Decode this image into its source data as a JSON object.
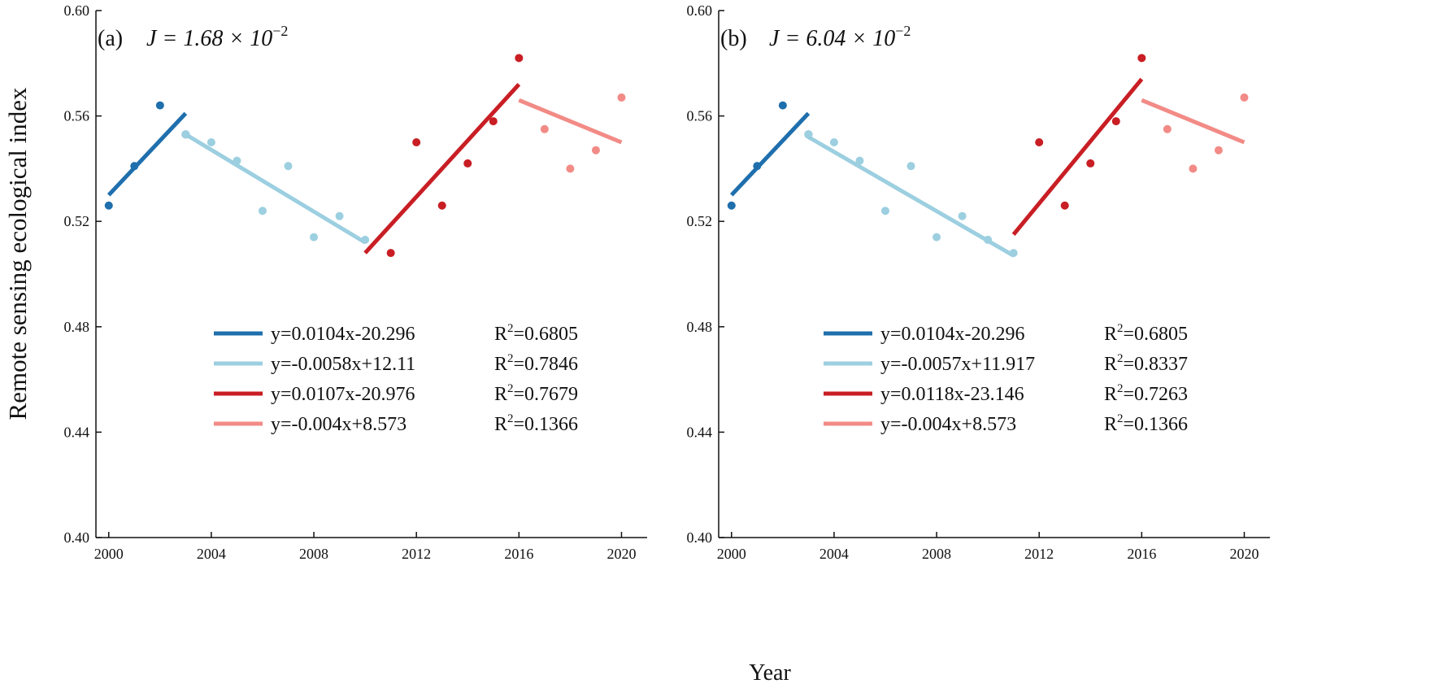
{
  "figure": {
    "ylabel": "Remote sensing ecological index",
    "xlabel": "Year"
  },
  "chart_data": [
    {
      "type": "scatter",
      "panel_label": "(a)",
      "j_value": "J = 1.68 × 10",
      "j_exponent": "−2",
      "xlim": [
        1999.5,
        2021
      ],
      "ylim": [
        0.4,
        0.6
      ],
      "xticks": [
        "2000",
        "2004",
        "2008",
        "2012",
        "2016",
        "2020"
      ],
      "yticks": [
        "0.40",
        "0.44",
        "0.48",
        "0.52",
        "0.56",
        "0.60"
      ],
      "series": [
        {
          "name": "segment-1",
          "color": "#1f6fad",
          "x": [
            2000,
            2001,
            2002,
            2003
          ],
          "y": [
            0.526,
            0.541,
            0.564,
            0.553
          ],
          "fit": {
            "x": [
              2000,
              2003
            ],
            "y": [
              0.53,
              0.561
            ]
          },
          "equation": "y=0.0104x-20.296",
          "r2_label": "R",
          "r2_sup": "2",
          "r2_value": "=0.6805"
        },
        {
          "name": "segment-2",
          "color": "#9ccfe0",
          "x": [
            2003,
            2004,
            2005,
            2006,
            2007,
            2008,
            2009,
            2010
          ],
          "y": [
            0.553,
            0.55,
            0.543,
            0.524,
            0.541,
            0.514,
            0.522,
            0.513
          ],
          "fit": {
            "x": [
              2003,
              2010
            ],
            "y": [
              0.553,
              0.512
            ]
          },
          "equation": "y=-0.0058x+12.11",
          "r2_label": "R",
          "r2_sup": "2",
          "r2_value": "=0.7846"
        },
        {
          "name": "segment-3",
          "color": "#c81e24",
          "x": [
            2011,
            2012,
            2013,
            2014,
            2015,
            2016
          ],
          "y": [
            0.508,
            0.55,
            0.526,
            0.542,
            0.558,
            0.582
          ],
          "fit": {
            "x": [
              2010,
              2016
            ],
            "y": [
              0.508,
              0.572
            ]
          },
          "equation": "y=0.0107x-20.976",
          "r2_label": "R",
          "r2_sup": "2",
          "r2_value": "=0.7679"
        },
        {
          "name": "segment-4",
          "color": "#f28b86",
          "x": [
            2017,
            2018,
            2019,
            2020
          ],
          "y": [
            0.555,
            0.54,
            0.547,
            0.567
          ],
          "fit": {
            "x": [
              2016,
              2020
            ],
            "y": [
              0.566,
              0.55
            ]
          },
          "equation": "y=-0.004x+8.573",
          "r2_label": "R",
          "r2_sup": "2",
          "r2_value": "=0.1366"
        }
      ]
    },
    {
      "type": "scatter",
      "panel_label": "(b)",
      "j_value": "J = 6.04 × 10",
      "j_exponent": "−2",
      "xlim": [
        1999.5,
        2021
      ],
      "ylim": [
        0.4,
        0.6
      ],
      "xticks": [
        "2000",
        "2004",
        "2008",
        "2012",
        "2016",
        "2020"
      ],
      "yticks": [
        "0.40",
        "0.44",
        "0.48",
        "0.52",
        "0.56",
        "0.60"
      ],
      "series": [
        {
          "name": "segment-1",
          "color": "#1f6fad",
          "x": [
            2000,
            2001,
            2002,
            2003
          ],
          "y": [
            0.526,
            0.541,
            0.564,
            0.553
          ],
          "fit": {
            "x": [
              2000,
              2003
            ],
            "y": [
              0.53,
              0.561
            ]
          },
          "equation": "y=0.0104x-20.296",
          "r2_label": "R",
          "r2_sup": "2",
          "r2_value": "=0.6805"
        },
        {
          "name": "segment-2",
          "color": "#9ccfe0",
          "x": [
            2003,
            2004,
            2005,
            2006,
            2007,
            2008,
            2009,
            2010,
            2011
          ],
          "y": [
            0.553,
            0.55,
            0.543,
            0.524,
            0.541,
            0.514,
            0.522,
            0.513,
            0.508
          ],
          "fit": {
            "x": [
              2003,
              2011
            ],
            "y": [
              0.552,
              0.507
            ]
          },
          "equation": "y=-0.0057x+11.917",
          "r2_label": "R",
          "r2_sup": "2",
          "r2_value": "=0.8337"
        },
        {
          "name": "segment-3",
          "color": "#c81e24",
          "x": [
            2012,
            2013,
            2014,
            2015,
            2016
          ],
          "y": [
            0.55,
            0.526,
            0.542,
            0.558,
            0.582
          ],
          "fit": {
            "x": [
              2011,
              2016
            ],
            "y": [
              0.515,
              0.574
            ]
          },
          "equation": "y=0.0118x-23.146",
          "r2_label": "R",
          "r2_sup": "2",
          "r2_value": "=0.7263"
        },
        {
          "name": "segment-4",
          "color": "#f28b86",
          "x": [
            2017,
            2018,
            2019,
            2020
          ],
          "y": [
            0.555,
            0.54,
            0.547,
            0.567
          ],
          "fit": {
            "x": [
              2016,
              2020
            ],
            "y": [
              0.566,
              0.55
            ]
          },
          "equation": "y=-0.004x+8.573",
          "r2_label": "R",
          "r2_sup": "2",
          "r2_value": "=0.1366"
        }
      ]
    }
  ]
}
